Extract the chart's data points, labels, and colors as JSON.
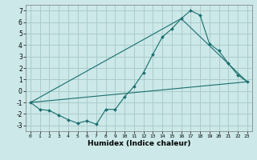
{
  "title": "",
  "xlabel": "Humidex (Indice chaleur)",
  "ylabel": "",
  "bg_color": "#cce8e8",
  "grid_color": "#aacccc",
  "line_color": "#1a6e6e",
  "xlim": [
    -0.5,
    23.5
  ],
  "ylim": [
    -3.5,
    7.5
  ],
  "xticks": [
    0,
    1,
    2,
    3,
    4,
    5,
    6,
    7,
    8,
    9,
    10,
    11,
    12,
    13,
    14,
    15,
    16,
    17,
    18,
    19,
    20,
    21,
    22,
    23
  ],
  "yticks": [
    -3,
    -2,
    -1,
    0,
    1,
    2,
    3,
    4,
    5,
    6,
    7
  ],
  "series1_x": [
    0,
    1,
    2,
    3,
    4,
    5,
    6,
    7,
    8,
    9,
    10,
    11,
    12,
    13,
    14,
    15,
    16,
    17,
    18,
    19,
    20,
    21,
    22,
    23
  ],
  "series1_y": [
    -1.0,
    -1.6,
    -1.7,
    -2.1,
    -2.5,
    -2.8,
    -2.6,
    -2.9,
    -1.6,
    -1.6,
    -0.5,
    0.4,
    1.6,
    3.2,
    4.7,
    5.4,
    6.3,
    7.0,
    6.6,
    4.1,
    3.5,
    2.4,
    1.4,
    0.8
  ],
  "series2_x": [
    0,
    16,
    23
  ],
  "series2_y": [
    -1.0,
    6.3,
    0.8
  ],
  "series3_x": [
    0,
    23
  ],
  "series3_y": [
    -1.0,
    0.8
  ],
  "xlabel_fontsize": 6.5,
  "tick_fontsize_x": 4.5,
  "tick_fontsize_y": 5.5
}
